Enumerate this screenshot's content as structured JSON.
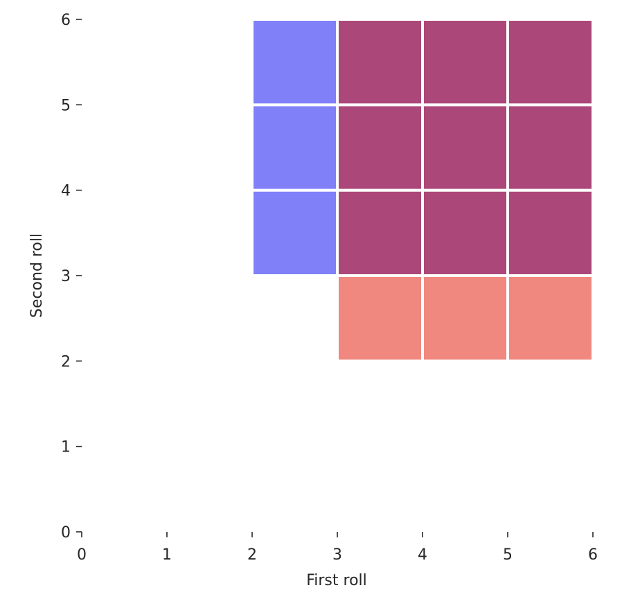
{
  "chart_data": {
    "type": "heatmap",
    "xlabel": "First roll",
    "ylabel": "Second roll",
    "xlim": [
      0,
      6
    ],
    "ylim": [
      0,
      6
    ],
    "xticks": [
      "0",
      "1",
      "2",
      "3",
      "4",
      "5",
      "6"
    ],
    "yticks": [
      "0",
      "1",
      "2",
      "3",
      "4",
      "5",
      "6"
    ],
    "grid": false,
    "colors": {
      "region_a": "#8080f8",
      "region_b": "#f08880",
      "overlap": "#ac4779",
      "cell_border": "#ffffff"
    },
    "series": [
      {
        "color_key": "region_a",
        "cells": [
          [
            2,
            3
          ],
          [
            2,
            4
          ],
          [
            2,
            5
          ]
        ]
      },
      {
        "color_key": "region_b",
        "cells": [
          [
            3,
            2
          ],
          [
            4,
            2
          ],
          [
            5,
            2
          ]
        ]
      },
      {
        "color_key": "overlap",
        "cells": [
          [
            3,
            3
          ],
          [
            4,
            3
          ],
          [
            5,
            3
          ],
          [
            3,
            4
          ],
          [
            4,
            4
          ],
          [
            5,
            4
          ],
          [
            3,
            5
          ],
          [
            4,
            5
          ],
          [
            5,
            5
          ]
        ]
      }
    ]
  }
}
